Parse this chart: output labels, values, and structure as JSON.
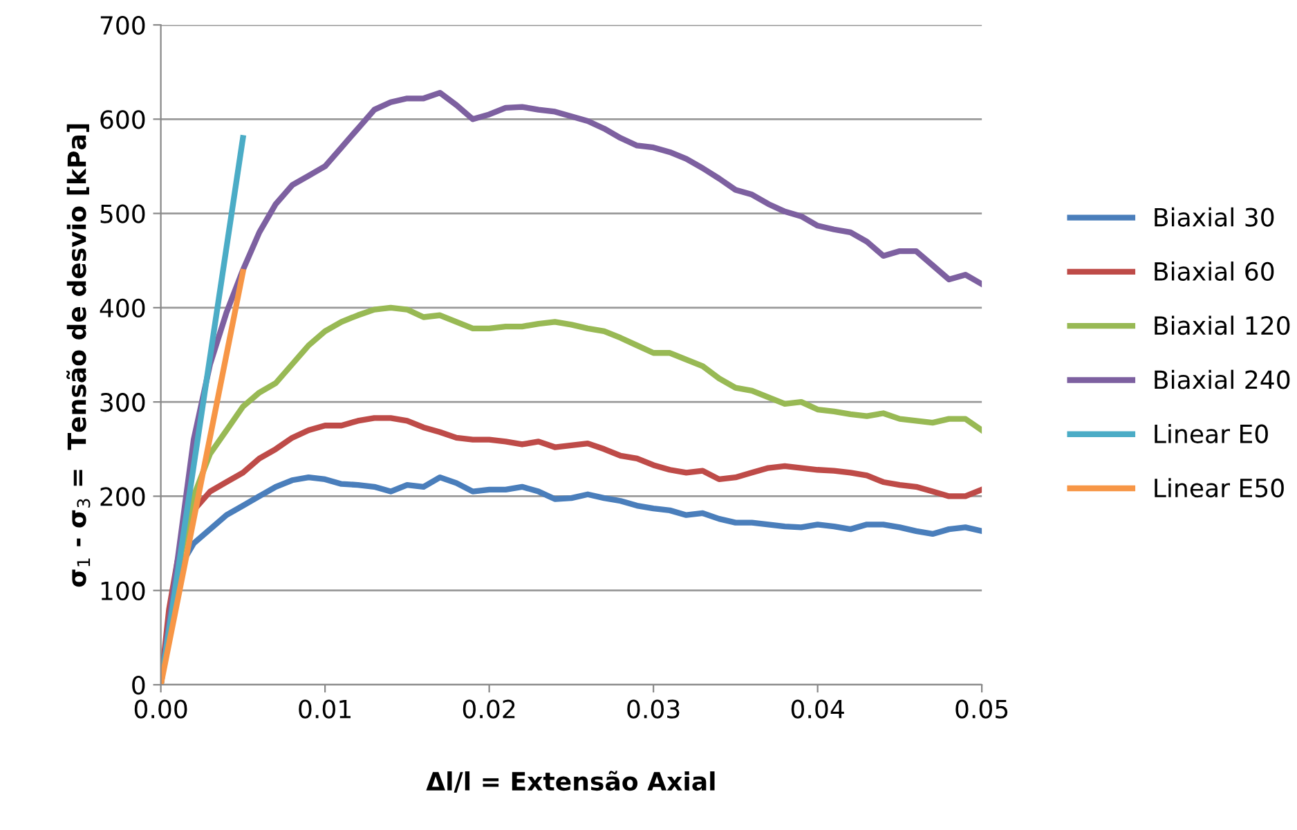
{
  "chart_data": {
    "type": "line",
    "xlabel": "Δl/l = Extensão Axial",
    "ylabel": "σ$_{1}$ - σ$_{3}$ =  Tensão de desvio [kPa]",
    "xlim": [
      0,
      0.05
    ],
    "ylim": [
      0,
      700
    ],
    "xticks": [
      {
        "value": 0,
        "label": "0.00"
      },
      {
        "value": 0.01,
        "label": "0.01"
      },
      {
        "value": 0.02,
        "label": "0.02"
      },
      {
        "value": 0.03,
        "label": "0.03"
      },
      {
        "value": 0.04,
        "label": "0.04"
      },
      {
        "value": 0.05,
        "label": "0.05"
      }
    ],
    "yticks": [
      0,
      100,
      200,
      300,
      400,
      500,
      600,
      700
    ],
    "grid": "y",
    "legend": "right",
    "marker": "none",
    "line_style": "solid",
    "series": [
      {
        "name": "Biaxial 30",
        "color": "#4a7ebb",
        "x": [
          0,
          0.0005,
          0.001,
          0.0015,
          0.002,
          0.003,
          0.004,
          0.005,
          0.006,
          0.007,
          0.008,
          0.009,
          0.01,
          0.011,
          0.012,
          0.013,
          0.014,
          0.015,
          0.016,
          0.017,
          0.018,
          0.019,
          0.02,
          0.021,
          0.022,
          0.023,
          0.024,
          0.025,
          0.026,
          0.027,
          0.028,
          0.029,
          0.03,
          0.031,
          0.032,
          0.033,
          0.034,
          0.035,
          0.036,
          0.037,
          0.038,
          0.039,
          0.04,
          0.041,
          0.042,
          0.043,
          0.044,
          0.045,
          0.046,
          0.047,
          0.048,
          0.049,
          0.05
        ],
        "values": [
          0,
          70,
          110,
          135,
          150,
          165,
          180,
          190,
          200,
          210,
          217,
          220,
          218,
          213,
          212,
          210,
          205,
          212,
          210,
          220,
          214,
          205,
          207,
          207,
          210,
          205,
          197,
          198,
          202,
          198,
          195,
          190,
          187,
          185,
          180,
          182,
          176,
          172,
          172,
          170,
          168,
          167,
          170,
          168,
          165,
          170,
          170,
          167,
          163,
          160,
          165,
          167,
          163
        ]
      },
      {
        "name": "Biaxial 60",
        "color": "#be4b48",
        "x": [
          0,
          0.0005,
          0.001,
          0.0015,
          0.002,
          0.003,
          0.004,
          0.005,
          0.006,
          0.007,
          0.008,
          0.009,
          0.01,
          0.011,
          0.012,
          0.013,
          0.014,
          0.015,
          0.016,
          0.017,
          0.018,
          0.019,
          0.02,
          0.021,
          0.022,
          0.023,
          0.024,
          0.025,
          0.026,
          0.027,
          0.028,
          0.029,
          0.03,
          0.031,
          0.032,
          0.033,
          0.034,
          0.035,
          0.036,
          0.037,
          0.038,
          0.039,
          0.04,
          0.041,
          0.042,
          0.043,
          0.044,
          0.045,
          0.046,
          0.047,
          0.048,
          0.049,
          0.05
        ],
        "values": [
          0,
          80,
          130,
          165,
          185,
          205,
          215,
          225,
          240,
          250,
          262,
          270,
          275,
          275,
          280,
          283,
          283,
          280,
          273,
          268,
          262,
          260,
          260,
          258,
          255,
          258,
          252,
          254,
          256,
          250,
          243,
          240,
          233,
          228,
          225,
          227,
          218,
          220,
          225,
          230,
          232,
          230,
          228,
          227,
          225,
          222,
          215,
          212,
          210,
          205,
          200,
          200,
          207
        ]
      },
      {
        "name": "Biaxial 120",
        "color": "#98b954",
        "x": [
          0,
          0.001,
          0.002,
          0.003,
          0.004,
          0.005,
          0.006,
          0.007,
          0.008,
          0.009,
          0.01,
          0.011,
          0.012,
          0.013,
          0.014,
          0.015,
          0.016,
          0.017,
          0.018,
          0.019,
          0.02,
          0.021,
          0.022,
          0.023,
          0.024,
          0.025,
          0.026,
          0.027,
          0.028,
          0.029,
          0.03,
          0.031,
          0.032,
          0.033,
          0.034,
          0.035,
          0.036,
          0.037,
          0.038,
          0.039,
          0.04,
          0.041,
          0.042,
          0.043,
          0.044,
          0.045,
          0.046,
          0.047,
          0.048,
          0.049,
          0.05
        ],
        "values": [
          0,
          120,
          200,
          245,
          270,
          295,
          310,
          320,
          340,
          360,
          375,
          385,
          392,
          398,
          400,
          398,
          390,
          392,
          385,
          378,
          378,
          380,
          380,
          383,
          385,
          382,
          378,
          375,
          368,
          360,
          352,
          352,
          345,
          338,
          325,
          315,
          312,
          305,
          298,
          300,
          292,
          290,
          287,
          285,
          288,
          282,
          280,
          278,
          282,
          282,
          270
        ]
      },
      {
        "name": "Biaxial 240",
        "color": "#7d60a0",
        "x": [
          0,
          0.001,
          0.002,
          0.003,
          0.004,
          0.005,
          0.006,
          0.007,
          0.008,
          0.009,
          0.01,
          0.011,
          0.012,
          0.013,
          0.014,
          0.015,
          0.016,
          0.017,
          0.018,
          0.019,
          0.02,
          0.021,
          0.022,
          0.023,
          0.024,
          0.025,
          0.026,
          0.027,
          0.028,
          0.029,
          0.03,
          0.031,
          0.032,
          0.033,
          0.034,
          0.035,
          0.036,
          0.037,
          0.038,
          0.039,
          0.04,
          0.041,
          0.042,
          0.043,
          0.044,
          0.045,
          0.046,
          0.047,
          0.048,
          0.049,
          0.05
        ],
        "values": [
          0,
          130,
          260,
          340,
          395,
          440,
          480,
          510,
          530,
          540,
          550,
          570,
          590,
          610,
          618,
          622,
          622,
          628,
          615,
          600,
          605,
          612,
          613,
          610,
          608,
          603,
          598,
          590,
          580,
          572,
          570,
          565,
          558,
          548,
          537,
          525,
          520,
          510,
          502,
          497,
          487,
          483,
          480,
          470,
          455,
          460,
          460,
          445,
          430,
          435,
          425
        ]
      },
      {
        "name": "Linear E0",
        "color": "#4bacc6",
        "x": [
          0,
          0.005
        ],
        "values": [
          0,
          580
        ]
      },
      {
        "name": "Linear E50",
        "color": "#f79646",
        "x": [
          0,
          0.005
        ],
        "values": [
          0,
          438
        ]
      }
    ]
  }
}
